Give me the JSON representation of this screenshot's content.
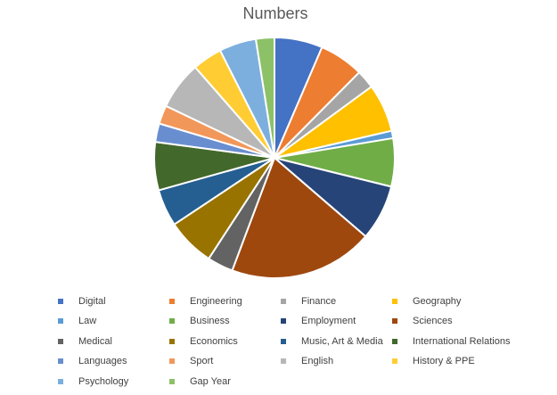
{
  "chart_data": {
    "type": "pie",
    "title": "Numbers",
    "legend_position": "bottom",
    "categories": [
      "Digital",
      "Engineering",
      "Finance",
      "Geography",
      "Law",
      "Business",
      "Employment",
      "Sciences",
      "Medical",
      "Economics",
      "Music, Art & Media",
      "International Relations",
      "Languages",
      "Sport",
      "English",
      "History & PPE",
      "Psychology",
      "Gap Year"
    ],
    "values": [
      6.5,
      6.0,
      2.5,
      6.5,
      1.0,
      6.5,
      7.5,
      19.5,
      3.5,
      6.5,
      5.0,
      6.5,
      2.5,
      2.5,
      6.5,
      4.0,
      5.0,
      2.5
    ],
    "colors": [
      "#4472C4",
      "#ED7D31",
      "#A5A5A5",
      "#FFC000",
      "#5B9BD5",
      "#70AD47",
      "#264478",
      "#9E480E",
      "#636363",
      "#997300",
      "#255E91",
      "#43682B",
      "#698ED0",
      "#F1975A",
      "#B7B7B7",
      "#FFCD33",
      "#7CAFDD",
      "#8CC168"
    ]
  }
}
